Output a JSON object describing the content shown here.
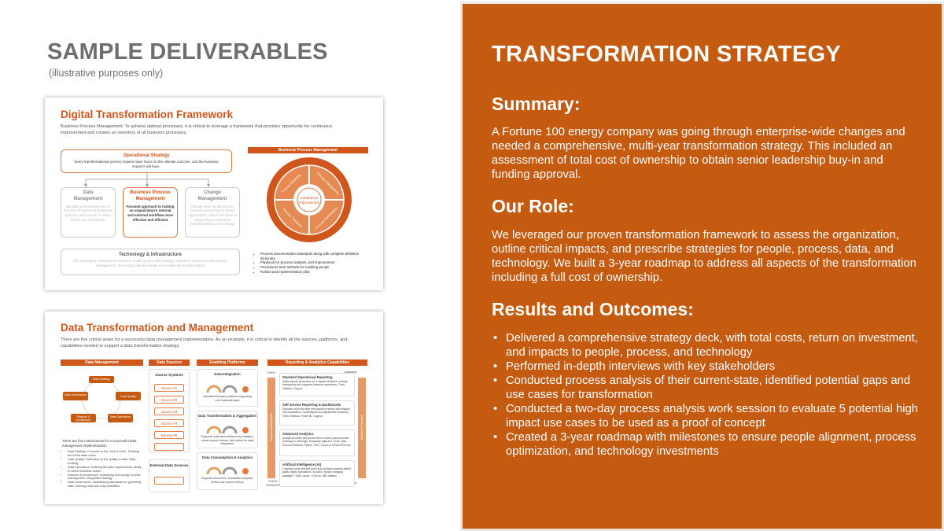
{
  "left": {
    "title": "SAMPLE DELIVERABLES",
    "subtitle": "(illustrative purposes only)"
  },
  "card1": {
    "title": "Digital Transformation Framework",
    "desc": "Business Process Management: To achieve optimal processes, it is critical to leverage a framework that provides opportunity for continuous improvement and creates an inventory of all business processes.",
    "op_strategy": "Operational Strategy",
    "op_text": "Every transformational journey requires laser focus on the ultimate outcome, and the business impact it will have.",
    "pillars": [
      {
        "head": "Data\nManagement",
        "text": "Big data and analytics are at the core of any transformational process, and must be in place before any information"
      },
      {
        "head": "Business Process\nManagement",
        "text": "Focused approach to making an organization's internal and external workflow more effective and efficient"
      },
      {
        "head": "Change\nManagement",
        "text": "Change starts at the top and involves preparing the entire organization, where everyone is supporting a sustained implementation of the change"
      }
    ],
    "tech_head": "Technology & Infrastructure",
    "tech_text": "The underlying infrastructure critical to enabling your data strategy, optimized processes, and change management. Technology will accelerate and enable the transformation",
    "bpm_bar": "Business Process Management",
    "wheel_center": "Continuous Improvement",
    "wheel_labels": [
      "Process Modeling & Discovery",
      "Process Management",
      "Process Optimization",
      "Process Transformation"
    ],
    "bullets": [
      "Process documentation standards along with complete definition dictionary",
      "Playbook for process analysis, and improvement",
      "Procedures and methods for enabling people",
      "Rollout and implementation plan"
    ]
  },
  "card2": {
    "title": "Data Transformation and Management",
    "desc": "There are five critical areas for a successful data management implementation. As an example, it is critical to identify all the sources, platforms, and capabilities needed to support a data transformation strategy.",
    "col_heads": [
      "Data Management",
      "Data Sources",
      "Enabling Platforms",
      "Reporting & Analytics Capabilities"
    ],
    "dm_nodes": [
      "Data Strategy",
      "Data Governance",
      "Data Quality",
      "Platform & Architecture",
      "Data Operations"
    ],
    "dm_intro": "There are five critical areas for a successful data management implementation",
    "dm_bullets": [
      "Data Strategy: Focused on the \"end in mind\". Defining the future state vision",
      "Data Quality: Evaluation of the quality of data. Data profiling",
      "Data Operations: Defining the data requirements, ability to define business needs",
      "Platform & Architecture: Underlying technology for data management, integration strategy",
      "Data Governance: Establishing standards for governing data. Defining roles and responsibilities"
    ],
    "source_systems": "Source Systems",
    "sources": [
      "Source #1",
      "Source #2",
      "Source #3",
      "Source #4",
      "Source #5",
      "..."
    ],
    "external": "External Data Sources",
    "external_more": "...",
    "platforms": [
      {
        "head": "Data Integration",
        "text": "Operational inquiry platform supporting core business apps"
      },
      {
        "head": "Data Transformation & Aggregation",
        "text": "Supports unstructured/discovery analytics, robust volume history; best suited for data integration"
      },
      {
        "head": "Data Consumption & Analytics",
        "text": "Supports structured, repeatable analytics; limited raw volume history"
      }
    ],
    "axis_high": "HIGH",
    "axis_good": "GOOD ENOUGH",
    "axis_caution": "Causative",
    "axis_correlation": "Correlation",
    "axis_left_label": "Required Data Quality",
    "axis_right_label": "Outcomes Focused",
    "capabilities": [
      {
        "head": "Standard Operational Reporting",
        "text": "Static reports generated on a regular schedule; change infrequently and supports business operations. Tools: Tableau, Cognos"
      },
      {
        "head": "Self Service Reporting & Dashboards",
        "text": "Dynamic near-real-time retrospective results with insights via visualization; modestly/ad-hoc adjustment frequency. Tools: Tableau, Power BI, Cognos"
      },
      {
        "head": "Advanced Analytics",
        "text": "Analytical model that predict future events and prescribe pathways to leverage; frequently adjusted. Tools: Data Science Platform, Python, H2O, Cloud w/ GPUs/TPUs etc."
      },
      {
        "head": "Artificial Intelligence (AI)",
        "text": "Cognitive tools that self-learn and optimize towards stated goals; highly specialized, focused, rapidly changing paradigm. Tools: Azure + H2O.ai, IBM Watson"
      }
    ]
  },
  "right": {
    "title": "TRANSFORMATION STRATEGY",
    "summary_head": "Summary:",
    "summary": "A Fortune 100 energy company was going through enterprise-wide changes and needed a comprehensive, multi-year transformation strategy. This included an assessment of total cost of ownership to obtain senior leadership buy-in and funding approval.",
    "role_head": "Our Role:",
    "role": "We leveraged our proven transformation framework to assess the organization, outline critical impacts, and prescribe strategies for people, process, data, and technology. We built a 3-year roadmap to address all aspects of the transformation including a full cost of ownership.",
    "results_head": "Results and Outcomes:",
    "results": [
      "Delivered a comprehensive strategy deck, with total costs, return on investment, and impacts to people, process, and technology",
      "Performed in-depth interviews with key stakeholders",
      "Conducted process analysis of their current-state, identified potential gaps and use cases for transformation",
      "Conducted a two-day process analysis work session to evaluate 5 potential high impact use cases to be used as a proof of concept",
      "Created a 3-year roadmap with milestones to ensure people alignment, process optimization, and technology investments"
    ]
  },
  "colors": {
    "accent": "#c55a11",
    "accent_light": "#d0561b",
    "heading_gray": "#6e6e6e"
  }
}
